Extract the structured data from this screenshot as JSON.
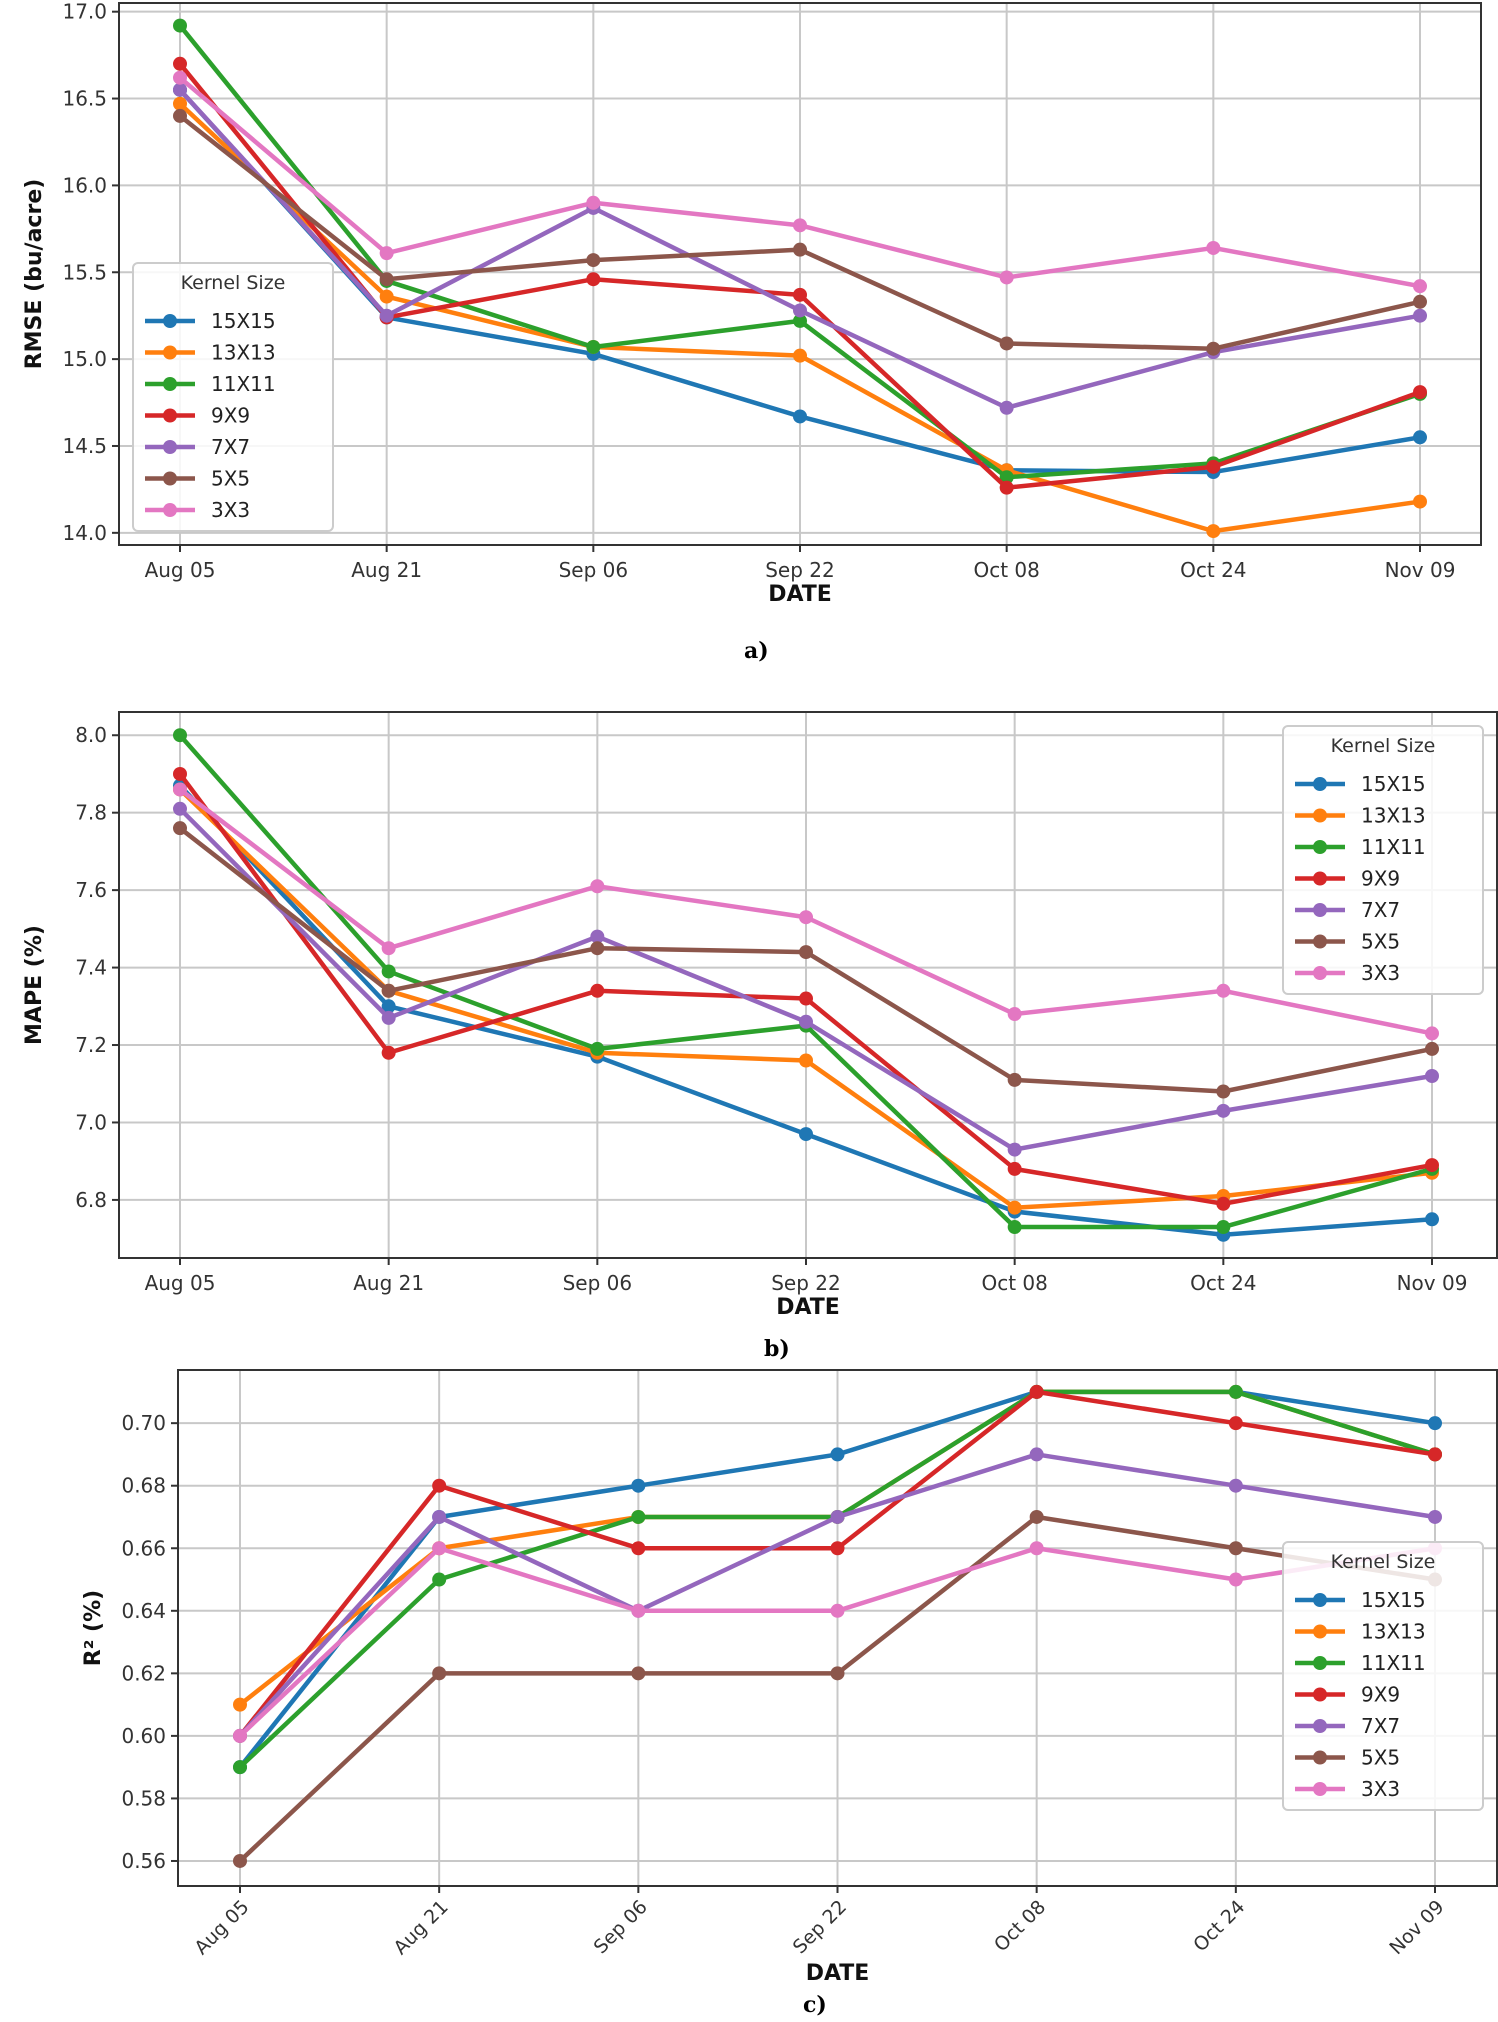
{
  "colors": {
    "15X15": "#1f77b4",
    "13X13": "#ff7f0e",
    "11X11": "#2ca02c",
    "9X9": "#d62728",
    "7X7": "#9467bd",
    "5X5": "#8c564b",
    "3X3": "#e377c2"
  },
  "chart_data": [
    {
      "type": "line",
      "caption": "a)",
      "xlabel": "DATE",
      "ylabel": "RMSE (bu/acre)",
      "categories": [
        "Aug 05",
        "Aug 21",
        "Sep 06",
        "Sep 22",
        "Oct 08",
        "Oct 24",
        "Nov 09"
      ],
      "yticks": [
        "14.0",
        "14.5",
        "15.0",
        "15.5",
        "16.0",
        "16.5",
        "17.0"
      ],
      "ylim": [
        13.93,
        17.05
      ],
      "grid": true,
      "legend_title": "Kernel Size",
      "legend_placement": "lower-left",
      "series": [
        {
          "name": "15X15",
          "values": [
            16.55,
            15.24,
            15.03,
            14.67,
            14.36,
            14.35,
            14.55
          ]
        },
        {
          "name": "13X13",
          "values": [
            16.47,
            15.36,
            15.07,
            15.02,
            14.36,
            14.01,
            14.18
          ]
        },
        {
          "name": "11X11",
          "values": [
            16.92,
            15.45,
            15.07,
            15.22,
            14.32,
            14.4,
            14.8
          ]
        },
        {
          "name": "9X9",
          "values": [
            16.7,
            15.24,
            15.46,
            15.37,
            14.26,
            14.38,
            14.81
          ]
        },
        {
          "name": "7X7",
          "values": [
            16.55,
            15.25,
            15.87,
            15.28,
            14.72,
            15.04,
            15.25
          ]
        },
        {
          "name": "5X5",
          "values": [
            16.4,
            15.46,
            15.57,
            15.63,
            15.09,
            15.06,
            15.33
          ]
        },
        {
          "name": "3X3",
          "values": [
            16.62,
            15.61,
            15.9,
            15.77,
            15.47,
            15.64,
            15.42
          ]
        }
      ]
    },
    {
      "type": "line",
      "caption": "b)",
      "xlabel": "DATE",
      "ylabel": "MAPE (%)",
      "categories": [
        "Aug 05",
        "Aug 21",
        "Sep 06",
        "Sep 22",
        "Oct 08",
        "Oct 24",
        "Nov 09"
      ],
      "yticks": [
        "6.8",
        "7.0",
        "7.2",
        "7.4",
        "7.6",
        "7.8",
        "8.0"
      ],
      "ylim": [
        6.65,
        8.06
      ],
      "grid": true,
      "legend_title": "Kernel Size",
      "legend_placement": "upper-right",
      "series": [
        {
          "name": "15X15",
          "values": [
            7.87,
            7.3,
            7.17,
            6.97,
            6.77,
            6.71,
            6.75
          ]
        },
        {
          "name": "13X13",
          "values": [
            7.86,
            7.34,
            7.18,
            7.16,
            6.78,
            6.81,
            6.87
          ]
        },
        {
          "name": "11X11",
          "values": [
            8.0,
            7.39,
            7.19,
            7.25,
            6.73,
            6.73,
            6.88
          ]
        },
        {
          "name": "9X9",
          "values": [
            7.9,
            7.18,
            7.34,
            7.32,
            6.88,
            6.79,
            6.89
          ]
        },
        {
          "name": "7X7",
          "values": [
            7.81,
            7.27,
            7.48,
            7.26,
            6.93,
            7.03,
            7.12
          ]
        },
        {
          "name": "5X5",
          "values": [
            7.76,
            7.34,
            7.45,
            7.44,
            7.11,
            7.08,
            7.19
          ]
        },
        {
          "name": "3X3",
          "values": [
            7.86,
            7.45,
            7.61,
            7.53,
            7.28,
            7.34,
            7.23
          ]
        }
      ]
    },
    {
      "type": "line",
      "caption": "c)",
      "xlabel": "DATE",
      "ylabel": "R² (%)",
      "categories": [
        "Aug 05",
        "Aug 21",
        "Sep 06",
        "Sep 22",
        "Oct 08",
        "Oct 24",
        "Nov 09"
      ],
      "yticks": [
        "0.56",
        "0.58",
        "0.60",
        "0.62",
        "0.64",
        "0.66",
        "0.68",
        "0.70"
      ],
      "ylim": [
        0.552,
        0.717
      ],
      "grid": true,
      "legend_title": "Kernel Size",
      "legend_placement": "lower-right",
      "xtick_rotation": 45,
      "series": [
        {
          "name": "15X15",
          "values": [
            0.59,
            0.67,
            0.68,
            0.69,
            0.71,
            0.71,
            0.7
          ]
        },
        {
          "name": "13X13",
          "values": [
            0.61,
            0.66,
            0.67,
            0.67,
            0.71,
            0.71,
            0.69
          ]
        },
        {
          "name": "11X11",
          "values": [
            0.59,
            0.65,
            0.67,
            0.67,
            0.71,
            0.71,
            0.69
          ]
        },
        {
          "name": "9X9",
          "values": [
            0.6,
            0.68,
            0.66,
            0.66,
            0.71,
            0.7,
            0.69
          ]
        },
        {
          "name": "7X7",
          "values": [
            0.6,
            0.67,
            0.64,
            0.67,
            0.69,
            0.68,
            0.67
          ]
        },
        {
          "name": "5X5",
          "values": [
            0.56,
            0.62,
            0.62,
            0.62,
            0.67,
            0.66,
            0.65
          ]
        },
        {
          "name": "3X3",
          "values": [
            0.6,
            0.66,
            0.64,
            0.64,
            0.66,
            0.65,
            0.66
          ]
        }
      ]
    }
  ]
}
